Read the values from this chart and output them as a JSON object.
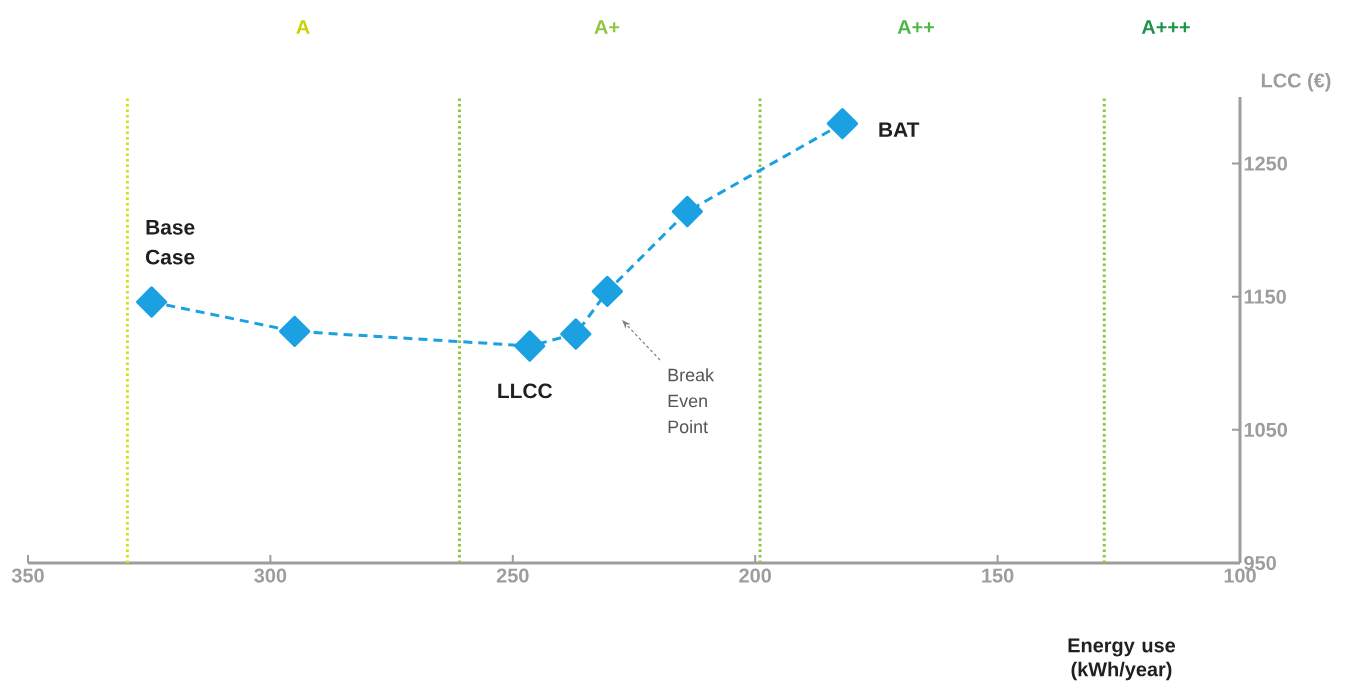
{
  "chart_data": {
    "type": "line",
    "x": [
      324.5,
      295,
      246.5,
      237,
      230.5,
      214,
      182
    ],
    "series": [
      {
        "color": "#1ba1e2",
        "values": [
          1146,
          1124,
          1113,
          1122,
          1154,
          1214,
          1280
        ]
      }
    ],
    "xlabel": "Energy use (kWh/year)",
    "ylabel": "LCC (€)",
    "xlim": [
      350,
      100
    ],
    "xticks": [
      350,
      300,
      250,
      200,
      150,
      100
    ],
    "ylim": [
      950,
      1300
    ],
    "yticks": [
      950,
      1050,
      1150,
      1250
    ],
    "marker": "diamond",
    "line_style": "dashed",
    "grid": false,
    "ref_lines": [
      {
        "axis": "x",
        "value": 329.5,
        "color": "#d5dd25",
        "line_style": "dotted"
      },
      {
        "axis": "x",
        "value": 261,
        "color": "#8dc63f",
        "line_style": "dotted"
      },
      {
        "axis": "x",
        "value": 199,
        "color": "#8dc63f",
        "line_style": "dotted"
      },
      {
        "axis": "x",
        "value": 128,
        "color": "#8dc63f",
        "line_style": "dotted"
      }
    ],
    "annotations": [
      "A",
      "A+",
      "A++",
      "A+++",
      {
        "text": "Base Case",
        "x": 324.5,
        "y": 1146
      },
      {
        "text": "LLCC",
        "x": 246.5,
        "y": 1113
      },
      {
        "text": "BAT",
        "x": 182,
        "y": 1280
      },
      "Break Even Point"
    ]
  }
}
